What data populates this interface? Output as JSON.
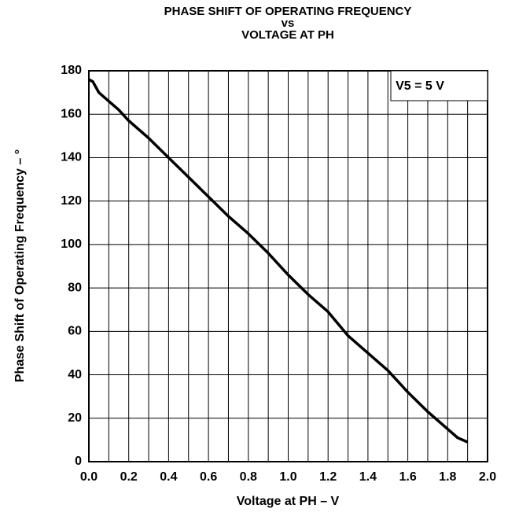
{
  "chart_data": {
    "type": "line",
    "title": [
      "PHASE SHIFT OF OPERATING FREQUENCY",
      "vs",
      "VOLTAGE AT PH"
    ],
    "x_label": "Voltage at PH – V",
    "y_label": "Phase Shift of Operating Frequency – °",
    "annotation": "V5 = 5 V",
    "x": [
      0,
      0.02,
      0.05,
      0.1,
      0.15,
      0.2,
      0.3,
      0.4,
      0.5,
      0.6,
      0.7,
      0.8,
      0.9,
      1.0,
      1.1,
      1.2,
      1.3,
      1.4,
      1.5,
      1.6,
      1.7,
      1.8,
      1.85,
      1.9
    ],
    "series": [
      {
        "name": "Phase shift",
        "color": "#000000",
        "values": [
          176,
          175,
          170,
          166,
          162,
          157,
          149,
          140,
          131,
          122,
          113,
          105,
          96,
          86,
          77,
          69,
          58,
          50,
          42,
          32,
          23,
          15,
          11,
          9
        ]
      }
    ],
    "xlim": [
      0,
      2.0
    ],
    "xticks": [
      {
        "value": 0,
        "label": "0.0"
      },
      0.2,
      0.4,
      0.6,
      0.8,
      {
        "value": 1,
        "label": "1.0"
      },
      1.2,
      1.4,
      1.6,
      1.8,
      {
        "value": 2,
        "label": "2.0"
      }
    ],
    "x_minor_ticks": [
      0.1,
      0.3,
      0.5,
      0.7,
      0.9,
      1.1,
      1.3,
      1.5,
      1.7,
      1.9
    ],
    "ylim": [
      0,
      180
    ],
    "yticks": [
      0,
      20,
      40,
      60,
      80,
      100,
      120,
      140,
      160,
      180
    ],
    "grid": true
  }
}
